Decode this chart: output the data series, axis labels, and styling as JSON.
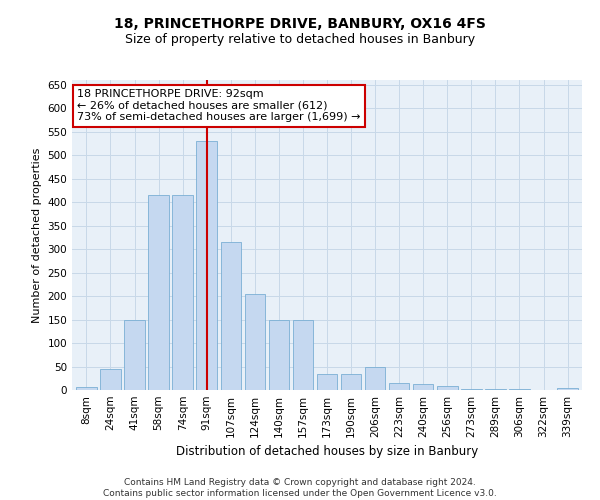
{
  "title": "18, PRINCETHORPE DRIVE, BANBURY, OX16 4FS",
  "subtitle": "Size of property relative to detached houses in Banbury",
  "xlabel": "Distribution of detached houses by size in Banbury",
  "ylabel": "Number of detached properties",
  "categories": [
    "8sqm",
    "24sqm",
    "41sqm",
    "58sqm",
    "74sqm",
    "91sqm",
    "107sqm",
    "124sqm",
    "140sqm",
    "157sqm",
    "173sqm",
    "190sqm",
    "206sqm",
    "223sqm",
    "240sqm",
    "256sqm",
    "273sqm",
    "289sqm",
    "306sqm",
    "322sqm",
    "339sqm"
  ],
  "values": [
    7,
    44,
    150,
    415,
    415,
    530,
    315,
    205,
    150,
    150,
    35,
    35,
    50,
    15,
    12,
    8,
    3,
    2,
    2,
    1,
    5
  ],
  "bar_color": "#c5d8f0",
  "bar_edge_color": "#7aafd4",
  "vline_x_index": 5,
  "vline_color": "#cc0000",
  "annotation_text": "18 PRINCETHORPE DRIVE: 92sqm\n← 26% of detached houses are smaller (612)\n73% of semi-detached houses are larger (1,699) →",
  "annotation_box_color": "#ffffff",
  "annotation_box_edge_color": "#cc0000",
  "ylim": [
    0,
    660
  ],
  "yticks": [
    0,
    50,
    100,
    150,
    200,
    250,
    300,
    350,
    400,
    450,
    500,
    550,
    600,
    650
  ],
  "grid_color": "#c8d8e8",
  "bg_color": "#e8f0f8",
  "footer": "Contains HM Land Registry data © Crown copyright and database right 2024.\nContains public sector information licensed under the Open Government Licence v3.0.",
  "title_fontsize": 10,
  "subtitle_fontsize": 9,
  "xlabel_fontsize": 8.5,
  "ylabel_fontsize": 8,
  "tick_fontsize": 7.5,
  "annotation_fontsize": 8,
  "footer_fontsize": 6.5
}
